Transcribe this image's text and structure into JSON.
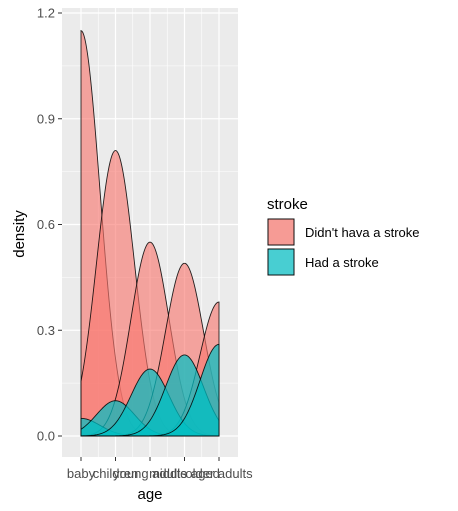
{
  "chart_data": {
    "type": "area",
    "subtype": "density",
    "xlabel": "age",
    "ylabel": "density",
    "ylim": [
      0,
      1.2
    ],
    "yticks": [
      0.0,
      0.3,
      0.6,
      0.9,
      1.2
    ],
    "ytick_labels": [
      "0.0",
      "0.3",
      "0.6",
      "0.9",
      "1.2"
    ],
    "categories": [
      "baby",
      "children",
      "young adults",
      "middle aged",
      "older adults"
    ],
    "x_axis_label_text": "baby childrenyoung adultsmiddle agedolder adults",
    "grid": true,
    "legend": {
      "title": "stroke",
      "position": "right",
      "entries": [
        {
          "label": "Didn't hava a stroke",
          "color": "#F8766D"
        },
        {
          "label": "Had a stroke",
          "color": "#00BFC4"
        }
      ]
    },
    "series": [
      {
        "name": "Didn't hava a stroke",
        "color": "#F8766D",
        "curves": [
          {
            "center_category": "baby",
            "peak": 1.15
          },
          {
            "center_category": "children",
            "peak": 0.81
          },
          {
            "center_category": "young adults",
            "peak": 0.55
          },
          {
            "center_category": "middle aged",
            "peak": 0.49
          },
          {
            "center_category": "older adults",
            "peak": 0.38
          }
        ]
      },
      {
        "name": "Had a stroke",
        "color": "#00BFC4",
        "curves": [
          {
            "center_category": "baby",
            "peak": 0.05
          },
          {
            "center_category": "children",
            "peak": 0.1
          },
          {
            "center_category": "young adults",
            "peak": 0.19
          },
          {
            "center_category": "middle aged",
            "peak": 0.23
          },
          {
            "center_category": "older adults",
            "peak": 0.26
          }
        ]
      }
    ]
  }
}
